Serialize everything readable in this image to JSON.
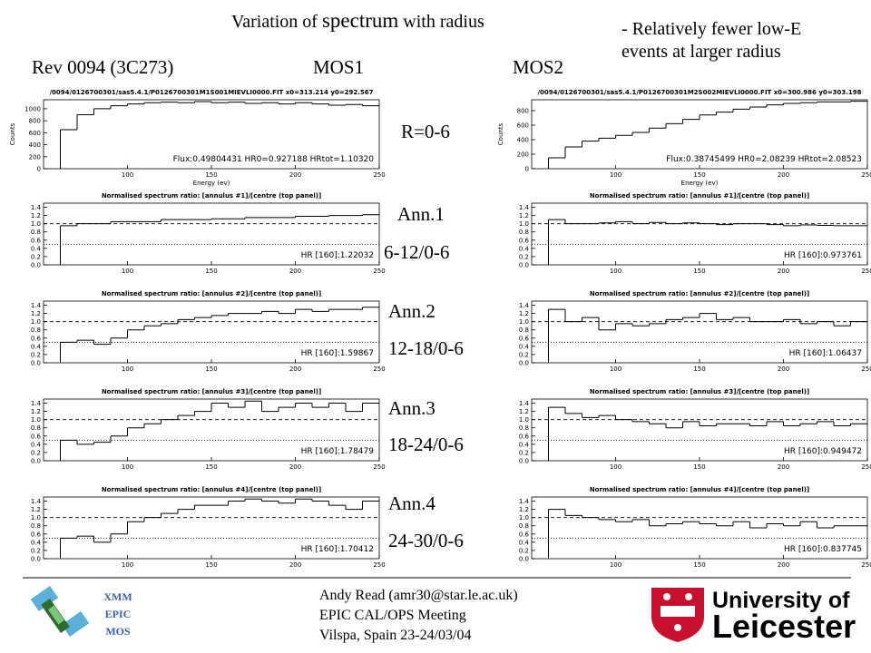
{
  "title": {
    "pre": "Variation of ",
    "emph": "spectrum",
    "post": " with radius"
  },
  "note": [
    "- Relatively fewer low-E",
    "events at larger radius"
  ],
  "column_headers": {
    "rev": "Rev 0094 (3C273)",
    "mos1": "MOS1",
    "mos2": "MOS2"
  },
  "axes": {
    "energy": {
      "label": "Energy (ev)",
      "xlim": [
        50,
        250
      ],
      "xticks": [
        100,
        150,
        200,
        250
      ],
      "bin_edges": [
        60,
        70,
        80,
        90,
        100,
        110,
        120,
        130,
        140,
        150,
        160,
        170,
        180,
        190,
        200,
        210,
        220,
        230,
        240,
        250
      ]
    },
    "counts": {
      "label": "Counts",
      "mos1": {
        "ylim": [
          0,
          1150
        ],
        "yticks": [
          0,
          200,
          400,
          600,
          800,
          1000
        ]
      },
      "mos2": {
        "ylim": [
          0,
          950
        ],
        "yticks": [
          0,
          200,
          400,
          600,
          800
        ]
      }
    },
    "ratio": {
      "ylim": [
        0,
        1.5
      ],
      "yticks": [
        {
          "value": 0,
          "label": "0.0"
        },
        0.2,
        0.4,
        0.6,
        0.8,
        {
          "value": 1,
          "label": "1.0"
        },
        1.2,
        1.4
      ],
      "dashed": 1,
      "dotted": 0.5
    }
  },
  "top": {
    "label": "R=0-6",
    "mos1": {
      "file": "/0094/0126700301/sas5.4.1/P0126700301M1S001MIEVLI0000.FIT x0=313.214 y0=292.567",
      "stats": "Flux:0.49804431 HR0=0.927188 HRtot=1.10320",
      "values": [
        650,
        900,
        1000,
        1050,
        1080,
        1100,
        1110,
        1100,
        1120,
        1100,
        1110,
        1090,
        1100,
        1080,
        1100,
        1080,
        1060,
        1070,
        1050
      ]
    },
    "mos2": {
      "file": "/0094/0126700301/sas5.4.1/P0126700301M2S002MIEVLI0000.FIT x0=300.986 y0=303.198",
      "stats": "Flux:0.38745499 HR0=2.08239 HRtot=2.08523",
      "values": [
        150,
        300,
        380,
        420,
        460,
        500,
        560,
        620,
        680,
        740,
        780,
        820,
        850,
        880,
        900,
        910,
        920,
        920,
        930
      ]
    }
  },
  "annuli": [
    {
      "name": "Ann.1",
      "ratio": "6-12/0-6",
      "mos1": {
        "title": "Normalised spectrum ratio: [annulus #1]/[centre (top panel)]",
        "hr": "HR [160]:1.22032",
        "values": [
          0.95,
          1.0,
          1.0,
          1.05,
          1.05,
          1.05,
          1.1,
          1.1,
          1.1,
          1.12,
          1.12,
          1.15,
          1.15,
          1.15,
          1.18,
          1.18,
          1.2,
          1.2,
          1.22
        ]
      },
      "mos2": {
        "title": "Normalised spectrum ratio: [annulus #1]/[centre (top panel)]",
        "hr": "HR [160]:0.973761",
        "values": [
          1.1,
          1.0,
          1.0,
          1.02,
          1.05,
          1.0,
          1.03,
          1.0,
          1.02,
          1.0,
          0.98,
          1.0,
          1.0,
          0.98,
          0.95,
          0.97,
          0.96,
          0.95,
          0.95
        ]
      }
    },
    {
      "name": "Ann.2",
      "ratio": "12-18/0-6",
      "mos1": {
        "title": "Normalised spectrum ratio: [annulus #2]/[centre (top panel)]",
        "hr": "HR [160]:1.59867",
        "values": [
          0.5,
          0.55,
          0.45,
          0.6,
          0.8,
          0.9,
          0.95,
          1.05,
          1.1,
          1.15,
          1.2,
          1.2,
          1.25,
          1.2,
          1.3,
          1.25,
          1.3,
          1.3,
          1.35
        ]
      },
      "mos2": {
        "title": "Normalised spectrum ratio: [annulus #2]/[centre (top panel)]",
        "hr": "HR [160]:1.06437",
        "values": [
          1.3,
          1.0,
          1.1,
          0.8,
          0.95,
          0.9,
          0.95,
          1.05,
          1.1,
          1.2,
          1.05,
          1.1,
          1.0,
          1.0,
          1.05,
          0.95,
          1.0,
          0.9,
          1.0
        ]
      }
    },
    {
      "name": "Ann.3",
      "ratio": "18-24/0-6",
      "mos1": {
        "title": "Normalised spectrum ratio: [annulus #3]/[centre (top panel)]",
        "hr": "HR [160]:1.78479",
        "values": [
          0.5,
          0.4,
          0.45,
          0.6,
          0.8,
          0.9,
          1.0,
          1.1,
          1.2,
          1.4,
          1.3,
          1.45,
          1.2,
          1.3,
          1.4,
          1.3,
          1.4,
          1.2,
          1.4
        ]
      },
      "mos2": {
        "title": "Normalised spectrum ratio: [annulus #3]/[centre (top panel)]",
        "hr": "HR [160]:0.949472",
        "values": [
          1.3,
          1.15,
          1.05,
          1.1,
          1.0,
          0.95,
          0.9,
          0.8,
          0.95,
          0.85,
          0.9,
          0.9,
          0.85,
          0.95,
          0.85,
          0.9,
          0.95,
          0.85,
          0.9
        ]
      }
    },
    {
      "name": "Ann.4",
      "ratio": "24-30/0-6",
      "mos1": {
        "title": "Normalised spectrum ratio: [annulus #4]/[centre (top panel)]",
        "hr": "HR [160]:1.70412",
        "values": [
          0.5,
          0.55,
          0.4,
          0.6,
          0.9,
          1.0,
          1.1,
          1.2,
          1.3,
          1.3,
          1.4,
          1.45,
          1.4,
          1.35,
          1.45,
          1.4,
          1.3,
          1.2,
          1.4
        ]
      },
      "mos2": {
        "title": "Normalised spectrum ratio: [annulus #4]/[centre (top panel)]",
        "hr": "HR [160]:0.837745",
        "values": [
          1.2,
          1.05,
          1.0,
          0.95,
          0.9,
          0.95,
          0.8,
          0.85,
          0.9,
          0.85,
          0.8,
          0.9,
          0.75,
          0.85,
          0.8,
          0.9,
          0.75,
          0.8,
          0.8
        ]
      }
    }
  ],
  "footer": {
    "mission": [
      "XMM",
      "EPIC",
      "MOS"
    ],
    "author": [
      "Andy Read (amr30@star.le.ac.uk)",
      "EPIC CAL/OPS Meeting",
      "Vilspa, Spain 23-24/03/04"
    ],
    "university": {
      "line1": "University of",
      "line2": "Leicester"
    }
  }
}
